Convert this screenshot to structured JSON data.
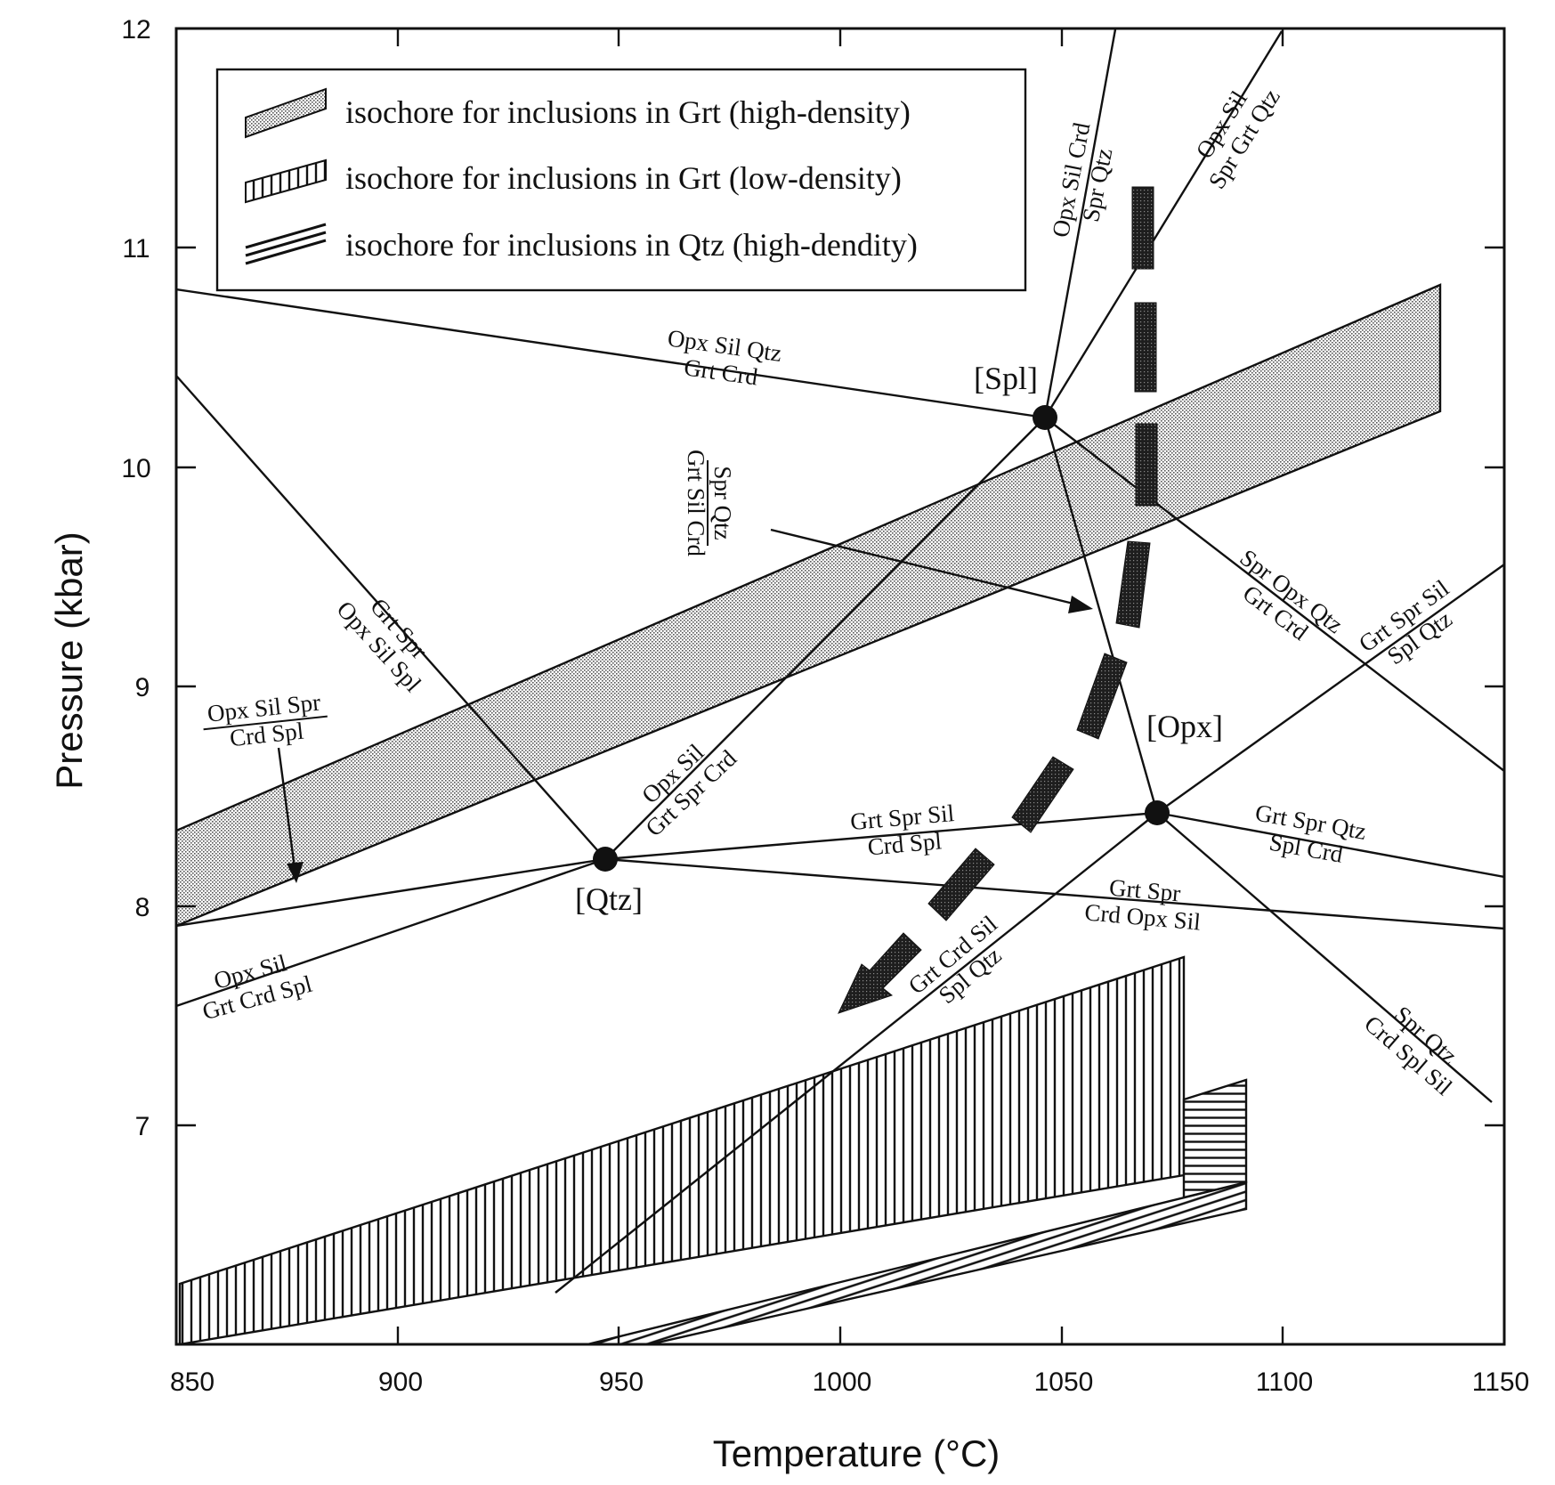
{
  "axes": {
    "x": {
      "title": "Temperature (°C)",
      "ticks": [
        "850",
        "900",
        "950",
        "1000",
        "1050",
        "1100",
        "1150"
      ],
      "range": [
        850,
        1150
      ]
    },
    "y": {
      "title": "Pressure (kbar)",
      "ticks": [
        "7",
        "8",
        "9",
        "10",
        "11",
        "12"
      ],
      "range": [
        6,
        12
      ]
    }
  },
  "legend": {
    "items": [
      {
        "label": "isochore for inclusions in Grt (high-density)",
        "pattern": "stipple"
      },
      {
        "label": "isochore for inclusions in Grt (low-density)",
        "pattern": "vertical-hatch"
      },
      {
        "label": "isochore for inclusions in Qtz  (high-dendity)",
        "pattern": "horizontal-hatch"
      }
    ]
  },
  "invariant_points": [
    {
      "label": "[Spl]",
      "T": 1046,
      "P": 10.22
    },
    {
      "label": "[Qtz]",
      "T": 946,
      "P": 8.2
    },
    {
      "label": "[Opx]",
      "T": 1071,
      "P": 8.42
    }
  ],
  "reactions": [
    {
      "top": "Opx Sil Qtz",
      "bottom": "Grt Crd"
    },
    {
      "top": "Opx Sil Crd",
      "bottom": "Spr Qtz"
    },
    {
      "top": "Opx Sil",
      "bottom": "Spr Grt Qtz"
    },
    {
      "top": "Spr Qtz",
      "bottom": "Grt Sil Crd"
    },
    {
      "top": "Spr Opx Qtz",
      "bottom": "Grt Crd"
    },
    {
      "top": "Grt Spr Sil",
      "bottom": "Spl Qtz"
    },
    {
      "top": "Grt Spr",
      "bottom": "Opx Sil Spl"
    },
    {
      "top": "Opx Sil Spr",
      "bottom": "Crd Spl"
    },
    {
      "top": "Opx Sil",
      "bottom": "Grt Spr Crd"
    },
    {
      "top": "Grt Spr Sil",
      "bottom": "Crd Spl"
    },
    {
      "top": "Grt Spr Qtz",
      "bottom": "Spl Crd"
    },
    {
      "top": "Grt Spr",
      "bottom": "Crd Opx Sil"
    },
    {
      "top": "Grt Crd Sil",
      "bottom": "Spl Qtz"
    },
    {
      "top": "Opx Sil",
      "bottom": "Grt Crd Spl"
    },
    {
      "top": "Spr Qtz",
      "bottom": "Crd Spl Sil"
    }
  ],
  "colors": {
    "ink": "#111111",
    "stipple": "#b9b9b9",
    "path": "#2e2e2e"
  }
}
